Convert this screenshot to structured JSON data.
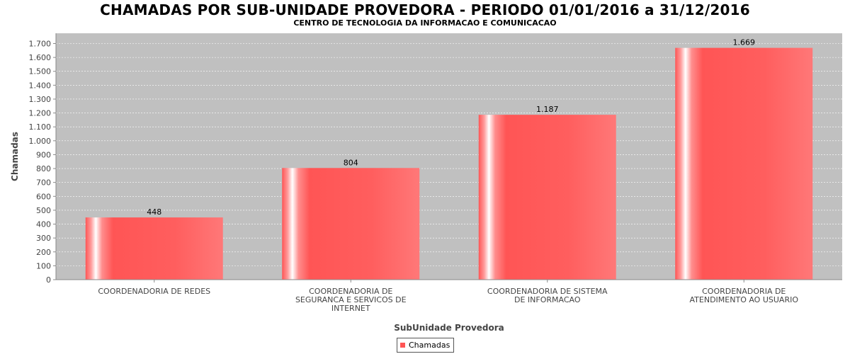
{
  "title": "CHAMADAS POR SUB-UNIDADE PROVEDORA - PERIODO 01/01/2016 a 31/12/2016",
  "subtitle": "CENTRO DE TECNOLOGIA DA INFORMACAO E COMUNICACAO",
  "colors": {
    "plot_background": "#c0c0c0",
    "bar": "#ff5555",
    "bar_light": "#ff7777",
    "grid": "#ffffff"
  },
  "chart_data": {
    "type": "bar",
    "title": "CHAMADAS POR SUB-UNIDADE PROVEDORA - PERIODO 01/01/2016 a 31/12/2016",
    "subtitle": "CENTRO DE TECNOLOGIA DA INFORMACAO E COMUNICACAO",
    "xlabel": "SubUnidade Provedora",
    "ylabel": "Chamadas",
    "ylim": [
      0,
      1750
    ],
    "yticks": [
      0,
      100,
      200,
      300,
      400,
      500,
      600,
      700,
      800,
      900,
      1000,
      1100,
      1200,
      1300,
      1400,
      1500,
      1600,
      1700
    ],
    "ytick_labels": [
      "0",
      "100",
      "200",
      "300",
      "400",
      "500",
      "600",
      "700",
      "800",
      "900",
      "1.000",
      "1.100",
      "1.200",
      "1.300",
      "1.400",
      "1.500",
      "1.600",
      "1.700"
    ],
    "grid": true,
    "legend_position": "bottom",
    "categories": [
      [
        "COORDENADORIA DE REDES"
      ],
      [
        "COORDENADORIA DE",
        "SEGURANCA E SERVICOS DE",
        "INTERNET"
      ],
      [
        "COORDENADORIA DE SISTEMA",
        "DE INFORMACAO"
      ],
      [
        "COORDENADORIA DE",
        "ATENDIMENTO AO USUARIO"
      ]
    ],
    "series": [
      {
        "name": "Chamadas",
        "values": [
          448,
          804,
          1187,
          1669
        ],
        "value_labels": [
          "448",
          "804",
          "1.187",
          "1.669"
        ]
      }
    ]
  }
}
